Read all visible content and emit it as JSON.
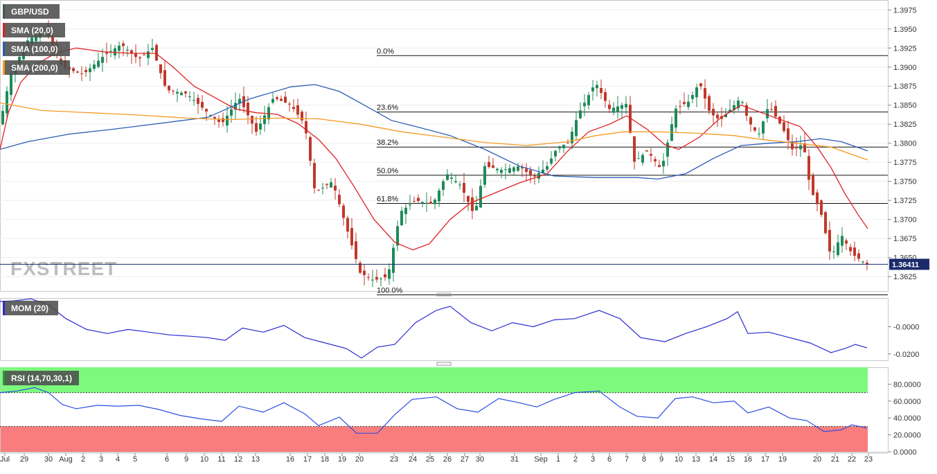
{
  "chart_data": [
    {
      "type": "candlestick",
      "title": "GBP/USD",
      "legend": [
        {
          "label": "GBP/USD",
          "color": "#3b5b52"
        },
        {
          "label": "SMA (20,0)",
          "color": "#e02020"
        },
        {
          "label": "SMA (100,0)",
          "color": "#2a5cb3"
        },
        {
          "label": "SMA (200,0)",
          "color": "#f59a23"
        }
      ],
      "legend_placement": "top-left",
      "ylim": [
        1.3606,
        1.3988
      ],
      "y_ticks": [
        "1.3625",
        "1.3650",
        "1.3675",
        "1.3700",
        "1.3725",
        "1.3750",
        "1.3775",
        "1.3800",
        "1.3825",
        "1.3850",
        "1.3875",
        "1.3900",
        "1.3925",
        "1.3950",
        "1.3975"
      ],
      "x_ticks": [
        "Jul",
        "29",
        "30",
        "Aug",
        "2",
        "3",
        "4",
        "5",
        "6",
        "9",
        "10",
        "11",
        "12",
        "13",
        "16",
        "17",
        "18",
        "19",
        "20",
        "23",
        "24",
        "25",
        "26",
        "27",
        "30",
        "31",
        "Sep",
        "1",
        "2",
        "3",
        "6",
        "7",
        "8",
        "9",
        "10",
        "13",
        "14",
        "15",
        "16",
        "17",
        "19",
        "20",
        "21",
        "22",
        "23"
      ],
      "fibonacci": [
        {
          "label": "0.0%",
          "value": 1.3915
        },
        {
          "label": "23.6%",
          "value": 1.3841
        },
        {
          "label": "38.2%",
          "value": 1.3795
        },
        {
          "label": "50.0%",
          "value": 1.3758
        },
        {
          "label": "61.8%",
          "value": 1.3721
        },
        {
          "label": "100.0%",
          "value": 1.3601
        }
      ],
      "current_price": {
        "label": "1.36411",
        "value": 1.36411
      },
      "watermark": "FXSTREET",
      "series": [
        {
          "name": "SMA (20,0)",
          "color": "#e02020",
          "points": [
            [
              0,
              1.3792
            ],
            [
              12,
              1.384
            ],
            [
              30,
              1.388
            ],
            [
              55,
              1.3905
            ],
            [
              80,
              1.3918
            ],
            [
              110,
              1.3925
            ],
            [
              150,
              1.392
            ],
            [
              190,
              1.3918
            ],
            [
              225,
              1.3918
            ],
            [
              250,
              1.39
            ],
            [
              280,
              1.3875
            ],
            [
              310,
              1.386
            ],
            [
              340,
              1.3845
            ],
            [
              370,
              1.384
            ],
            [
              400,
              1.3838
            ],
            [
              430,
              1.3826
            ],
            [
              460,
              1.3805
            ],
            [
              485,
              1.378
            ],
            [
              510,
              1.3745
            ],
            [
              540,
              1.37
            ],
            [
              570,
              1.367
            ],
            [
              596,
              1.366
            ],
            [
              620,
              1.3668
            ],
            [
              650,
              1.37
            ],
            [
              680,
              1.3722
            ],
            [
              710,
              1.3733
            ],
            [
              750,
              1.3748
            ],
            [
              790,
              1.376
            ],
            [
              820,
              1.379
            ],
            [
              850,
              1.3815
            ],
            [
              880,
              1.3825
            ],
            [
              905,
              1.3836
            ],
            [
              935,
              1.3818
            ],
            [
              960,
              1.3798
            ],
            [
              980,
              1.3792
            ],
            [
              1010,
              1.3808
            ],
            [
              1040,
              1.3833
            ],
            [
              1070,
              1.385
            ],
            [
              1100,
              1.384
            ],
            [
              1130,
              1.383
            ],
            [
              1155,
              1.3822
            ],
            [
              1180,
              1.3795
            ],
            [
              1200,
              1.3768
            ],
            [
              1220,
              1.3734
            ],
            [
              1240,
              1.3705
            ],
            [
              1253,
              1.3688
            ]
          ]
        },
        {
          "name": "SMA (100,0)",
          "color": "#2a5cb3",
          "points": [
            [
              0,
              1.3792
            ],
            [
              40,
              1.3802
            ],
            [
              100,
              1.3812
            ],
            [
              160,
              1.3818
            ],
            [
              230,
              1.3826
            ],
            [
              300,
              1.3834
            ],
            [
              360,
              1.3858
            ],
            [
              420,
              1.3874
            ],
            [
              455,
              1.3877
            ],
            [
              490,
              1.3868
            ],
            [
              530,
              1.3848
            ],
            [
              565,
              1.383
            ],
            [
              600,
              1.3822
            ],
            [
              650,
              1.381
            ],
            [
              700,
              1.3792
            ],
            [
              750,
              1.377
            ],
            [
              800,
              1.3757
            ],
            [
              860,
              1.3755
            ],
            [
              920,
              1.3755
            ],
            [
              950,
              1.3753
            ],
            [
              990,
              1.376
            ],
            [
              1030,
              1.378
            ],
            [
              1070,
              1.3797
            ],
            [
              1110,
              1.38
            ],
            [
              1150,
              1.3802
            ],
            [
              1185,
              1.3806
            ],
            [
              1215,
              1.3802
            ],
            [
              1253,
              1.379
            ]
          ]
        },
        {
          "name": "SMA (200,0)",
          "color": "#f59a23",
          "points": [
            [
              0,
              1.3853
            ],
            [
              60,
              1.3843
            ],
            [
              130,
              1.384
            ],
            [
              200,
              1.3837
            ],
            [
              270,
              1.3833
            ],
            [
              330,
              1.3831
            ],
            [
              400,
              1.3833
            ],
            [
              460,
              1.3832
            ],
            [
              520,
              1.3825
            ],
            [
              580,
              1.3815
            ],
            [
              640,
              1.3808
            ],
            [
              700,
              1.3801
            ],
            [
              760,
              1.3797
            ],
            [
              820,
              1.3802
            ],
            [
              860,
              1.381
            ],
            [
              900,
              1.3815
            ],
            [
              950,
              1.3815
            ],
            [
              1010,
              1.3813
            ],
            [
              1060,
              1.381
            ],
            [
              1100,
              1.3805
            ],
            [
              1150,
              1.38
            ],
            [
              1200,
              1.3795
            ],
            [
              1253,
              1.3778
            ]
          ]
        }
      ]
    },
    {
      "type": "line",
      "title": "MOM (20)",
      "legend": [
        {
          "label": "MOM (20)",
          "color": "#2a2ad0"
        }
      ],
      "ylim": [
        -0.0247,
        0.0211
      ],
      "y_ticks": [
        "-0.0000",
        "-0.0200"
      ],
      "series": [
        {
          "name": "MOM (20)",
          "color": "#2a2ad0",
          "points": [
            [
              0,
              0.0185
            ],
            [
              20,
              0.019
            ],
            [
              45,
              0.0205
            ],
            [
              70,
              0.016
            ],
            [
              95,
              0.006
            ],
            [
              125,
              -0.002
            ],
            [
              155,
              -0.005
            ],
            [
              185,
              -0.002
            ],
            [
              215,
              -0.004
            ],
            [
              245,
              -0.006
            ],
            [
              275,
              -0.007
            ],
            [
              300,
              -0.008
            ],
            [
              325,
              -0.01
            ],
            [
              350,
              -0.001
            ],
            [
              380,
              -0.004
            ],
            [
              410,
              0.001
            ],
            [
              440,
              -0.008
            ],
            [
              470,
              -0.012
            ],
            [
              500,
              -0.016
            ],
            [
              522,
              -0.023
            ],
            [
              545,
              -0.015
            ],
            [
              570,
              -0.013
            ],
            [
              600,
              0.003
            ],
            [
              630,
              0.012
            ],
            [
              650,
              0.015
            ],
            [
              680,
              0.003
            ],
            [
              710,
              -0.003
            ],
            [
              740,
              0.003
            ],
            [
              770,
              0.0
            ],
            [
              800,
              0.005
            ],
            [
              830,
              0.006
            ],
            [
              865,
              0.012
            ],
            [
              895,
              0.006
            ],
            [
              925,
              -0.008
            ],
            [
              960,
              -0.011
            ],
            [
              990,
              -0.005
            ],
            [
              1020,
              0.0
            ],
            [
              1050,
              0.006
            ],
            [
              1065,
              0.011
            ],
            [
              1080,
              -0.005
            ],
            [
              1110,
              -0.004
            ],
            [
              1140,
              -0.008
            ],
            [
              1170,
              -0.012
            ],
            [
              1200,
              -0.019
            ],
            [
              1220,
              -0.016
            ],
            [
              1235,
              -0.013
            ],
            [
              1252,
              -0.0155
            ]
          ]
        }
      ]
    },
    {
      "type": "line",
      "title": "RSI (14,70,30,1)",
      "legend": [
        {
          "label": "RSI (14,70,30,1)",
          "color": "#1e9c3a"
        }
      ],
      "ylim": [
        0,
        100
      ],
      "y_ticks": [
        "0.0000",
        "20.0000",
        "40.0000",
        "60.0000",
        "80.0000"
      ],
      "bands": [
        {
          "from": 70,
          "to": 100,
          "color": "#7dfa7d"
        },
        {
          "from": 0,
          "to": 30,
          "color": "#fa7d7d"
        }
      ],
      "series": [
        {
          "name": "RSI (14,70,30,1)",
          "color": "#2a4de0",
          "points": [
            [
              0,
              70
            ],
            [
              25,
              72
            ],
            [
              50,
              76
            ],
            [
              70,
              70
            ],
            [
              90,
              56
            ],
            [
              110,
              51
            ],
            [
              140,
              55
            ],
            [
              170,
              54
            ],
            [
              200,
              55
            ],
            [
              230,
              50
            ],
            [
              260,
              43
            ],
            [
              290,
              39
            ],
            [
              320,
              36
            ],
            [
              345,
              54
            ],
            [
              380,
              47
            ],
            [
              410,
              58
            ],
            [
              440,
              45
            ],
            [
              460,
              31
            ],
            [
              490,
              41
            ],
            [
              515,
              22
            ],
            [
              545,
              22
            ],
            [
              570,
              44
            ],
            [
              595,
              62
            ],
            [
              630,
              65
            ],
            [
              660,
              51
            ],
            [
              690,
              47
            ],
            [
              720,
              63
            ],
            [
              750,
              58
            ],
            [
              775,
              53
            ],
            [
              800,
              62
            ],
            [
              830,
              70
            ],
            [
              865,
              72
            ],
            [
              895,
              53
            ],
            [
              920,
              42
            ],
            [
              950,
              40
            ],
            [
              975,
              63
            ],
            [
              1000,
              65
            ],
            [
              1030,
              58
            ],
            [
              1060,
              60
            ],
            [
              1080,
              46
            ],
            [
              1110,
              53
            ],
            [
              1140,
              40
            ],
            [
              1165,
              37
            ],
            [
              1190,
              24
            ],
            [
              1215,
              26
            ],
            [
              1230,
              32
            ],
            [
              1252,
              28
            ]
          ]
        }
      ]
    }
  ]
}
